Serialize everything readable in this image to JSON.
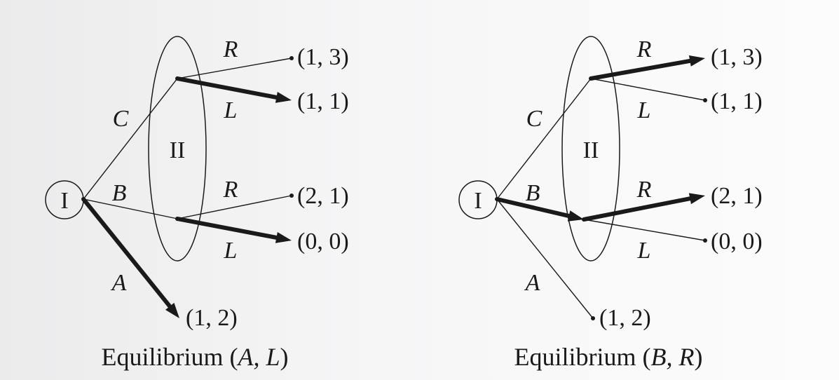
{
  "diagrams": [
    {
      "root_label": "I",
      "info_set_label": "II",
      "actions": {
        "top": "C",
        "middle": "B",
        "bottom": "A"
      },
      "upper_node": {
        "up": "R",
        "down": "L"
      },
      "lower_node": {
        "up": "R",
        "down": "L"
      },
      "payoffs": {
        "cr": "(1, 3)",
        "cl": "(1, 1)",
        "br": "(2, 1)",
        "bl": "(0, 0)",
        "a": "(1, 2)"
      },
      "highlighted": [
        "a",
        "cl",
        "bl"
      ],
      "caption": {
        "prefix": "Equilibrium (",
        "first": "A",
        "sep": ", ",
        "second": "L",
        "suffix": ")"
      }
    },
    {
      "root_label": "I",
      "info_set_label": "II",
      "actions": {
        "top": "C",
        "middle": "B",
        "bottom": "A"
      },
      "upper_node": {
        "up": "R",
        "down": "L"
      },
      "lower_node": {
        "up": "R",
        "down": "L"
      },
      "payoffs": {
        "cr": "(1, 3)",
        "cl": "(1, 1)",
        "br": "(2, 1)",
        "bl": "(0, 0)",
        "a": "(1, 2)"
      },
      "highlighted": [
        "b",
        "cr",
        "br"
      ],
      "caption": {
        "prefix": "Equilibrium (",
        "first": "B",
        "sep": ", ",
        "second": "R",
        "suffix": ")"
      }
    }
  ]
}
